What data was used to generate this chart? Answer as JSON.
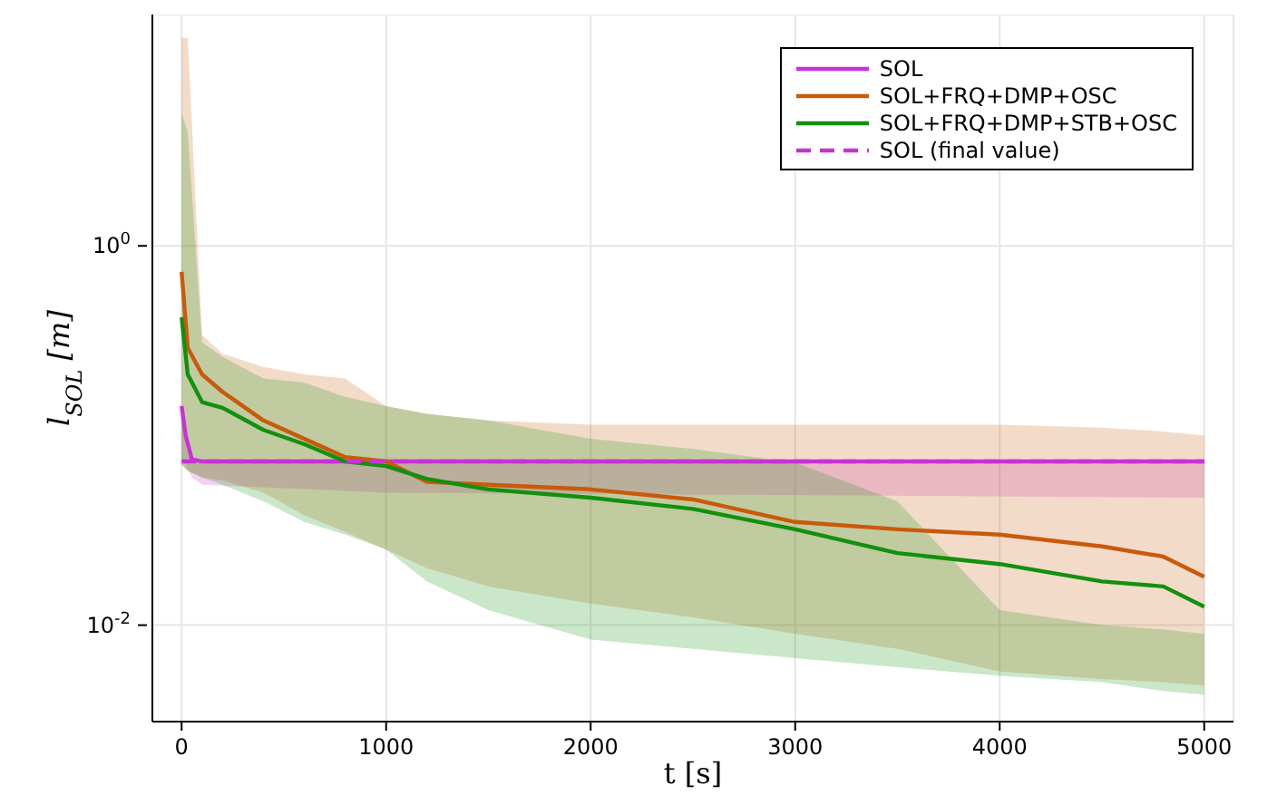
{
  "chart_data": {
    "type": "line",
    "xlabel": "t [s]",
    "ylabel": "l$_{SOL}$ [m]",
    "log": "y",
    "grid": true,
    "legend": "top right",
    "marker": "none",
    "xlim": [
      -143,
      5143
    ],
    "xticks": [
      0,
      1000,
      2000,
      3000,
      4000,
      5000
    ],
    "ylim": [
      0.0031,
      16.6
    ],
    "yticks": [
      {
        "value": 1,
        "label": "10$^{0}$"
      },
      {
        "value": 0.01,
        "label": "10$^{-2}$"
      }
    ],
    "series": [
      {
        "name": "SOL",
        "color": "#c832d4",
        "line_style": "solid",
        "x": [
          0,
          20,
          50,
          100,
          1000,
          5000
        ],
        "values": [
          0.143,
          0.1,
          0.075,
          0.073,
          0.073,
          0.073
        ],
        "lower": [
          0.073,
          0.07,
          0.06,
          0.055,
          0.05,
          0.047
        ],
        "upper": [
          0.143,
          0.1,
          0.075,
          0.073,
          0.073,
          0.073
        ]
      },
      {
        "name": "SOL+FRQ+DMP+OSC",
        "color": "#c85a0a",
        "line_style": "solid",
        "x": [
          0,
          30,
          100,
          200,
          400,
          600,
          800,
          1000,
          1200,
          1500,
          2000,
          2500,
          3000,
          3500,
          4000,
          4500,
          4800,
          5000
        ],
        "values": [
          0.73,
          0.29,
          0.21,
          0.17,
          0.12,
          0.096,
          0.077,
          0.073,
          0.057,
          0.055,
          0.052,
          0.046,
          0.035,
          0.032,
          0.03,
          0.026,
          0.023,
          0.018
        ],
        "lower": [
          0.07,
          0.065,
          0.06,
          0.058,
          0.05,
          0.038,
          0.031,
          0.025,
          0.02,
          0.016,
          0.013,
          0.011,
          0.009,
          0.0075,
          0.0057,
          0.0052,
          0.005,
          0.0048
        ],
        "upper": [
          12.5,
          12.5,
          0.34,
          0.27,
          0.23,
          0.21,
          0.2,
          0.143,
          0.13,
          0.12,
          0.114,
          0.114,
          0.114,
          0.114,
          0.114,
          0.11,
          0.105,
          0.1
        ]
      },
      {
        "name": "SOL+FRQ+DMP+STB+OSC",
        "color": "#12900e",
        "line_style": "solid",
        "x": [
          0,
          30,
          100,
          200,
          400,
          600,
          800,
          1000,
          1200,
          1500,
          2000,
          2500,
          3000,
          3500,
          4000,
          4500,
          4800,
          5000
        ],
        "values": [
          0.42,
          0.21,
          0.15,
          0.14,
          0.107,
          0.09,
          0.073,
          0.069,
          0.059,
          0.052,
          0.047,
          0.041,
          0.032,
          0.024,
          0.021,
          0.017,
          0.016,
          0.0125
        ],
        "lower": [
          0.07,
          0.065,
          0.06,
          0.055,
          0.045,
          0.035,
          0.03,
          0.025,
          0.017,
          0.012,
          0.0084,
          0.0075,
          0.0067,
          0.006,
          0.0054,
          0.005,
          0.0045,
          0.0043
        ],
        "upper": [
          5,
          4,
          0.31,
          0.26,
          0.2,
          0.19,
          0.16,
          0.143,
          0.13,
          0.12,
          0.096,
          0.085,
          0.072,
          0.045,
          0.012,
          0.01,
          0.0095,
          0.009
        ]
      },
      {
        "name": "SOL (final value)",
        "color": "#c832d4",
        "line_style": "dashed",
        "x": [
          0,
          5000
        ],
        "values": [
          0.073,
          0.073
        ]
      }
    ]
  }
}
